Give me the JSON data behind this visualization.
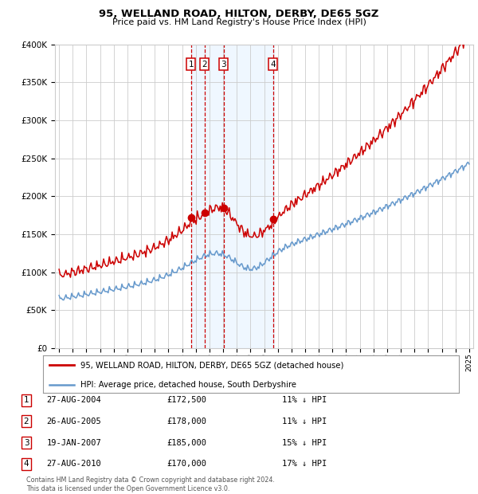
{
  "title": "95, WELLAND ROAD, HILTON, DERBY, DE65 5GZ",
  "subtitle": "Price paid vs. HM Land Registry's House Price Index (HPI)",
  "footer_line1": "Contains HM Land Registry data © Crown copyright and database right 2024.",
  "footer_line2": "This data is licensed under the Open Government Licence v3.0.",
  "legend_label_red": "95, WELLAND ROAD, HILTON, DERBY, DE65 5GZ (detached house)",
  "legend_label_blue": "HPI: Average price, detached house, South Derbyshire",
  "transactions": [
    {
      "num": 1,
      "date": "27-AUG-2004",
      "price": 172500,
      "pct": "11%",
      "year_x": 2004.65
    },
    {
      "num": 2,
      "date": "26-AUG-2005",
      "price": 178000,
      "pct": "11%",
      "year_x": 2005.65
    },
    {
      "num": 3,
      "date": "19-JAN-2007",
      "price": 185000,
      "pct": "15%",
      "year_x": 2007.05
    },
    {
      "num": 4,
      "date": "27-AUG-2010",
      "price": 170000,
      "pct": "17%",
      "year_x": 2010.65
    }
  ],
  "table_rows": [
    {
      "num": 1,
      "date": "27-AUG-2004",
      "price": "£172,500",
      "info": "11% ↓ HPI"
    },
    {
      "num": 2,
      "date": "26-AUG-2005",
      "price": "£178,000",
      "info": "11% ↓ HPI"
    },
    {
      "num": 3,
      "date": "19-JAN-2007",
      "price": "£185,000",
      "info": "15% ↓ HPI"
    },
    {
      "num": 4,
      "date": "27-AUG-2010",
      "price": "£170,000",
      "info": "17% ↓ HPI"
    }
  ],
  "ylim": [
    0,
    400000
  ],
  "xlim_start": 1994.7,
  "xlim_end": 2025.3,
  "red_color": "#cc0000",
  "blue_color": "#6699cc",
  "background_color": "#ffffff",
  "grid_color": "#cccccc",
  "vline_color": "#cc0000",
  "highlight_color": "#ddeeff"
}
